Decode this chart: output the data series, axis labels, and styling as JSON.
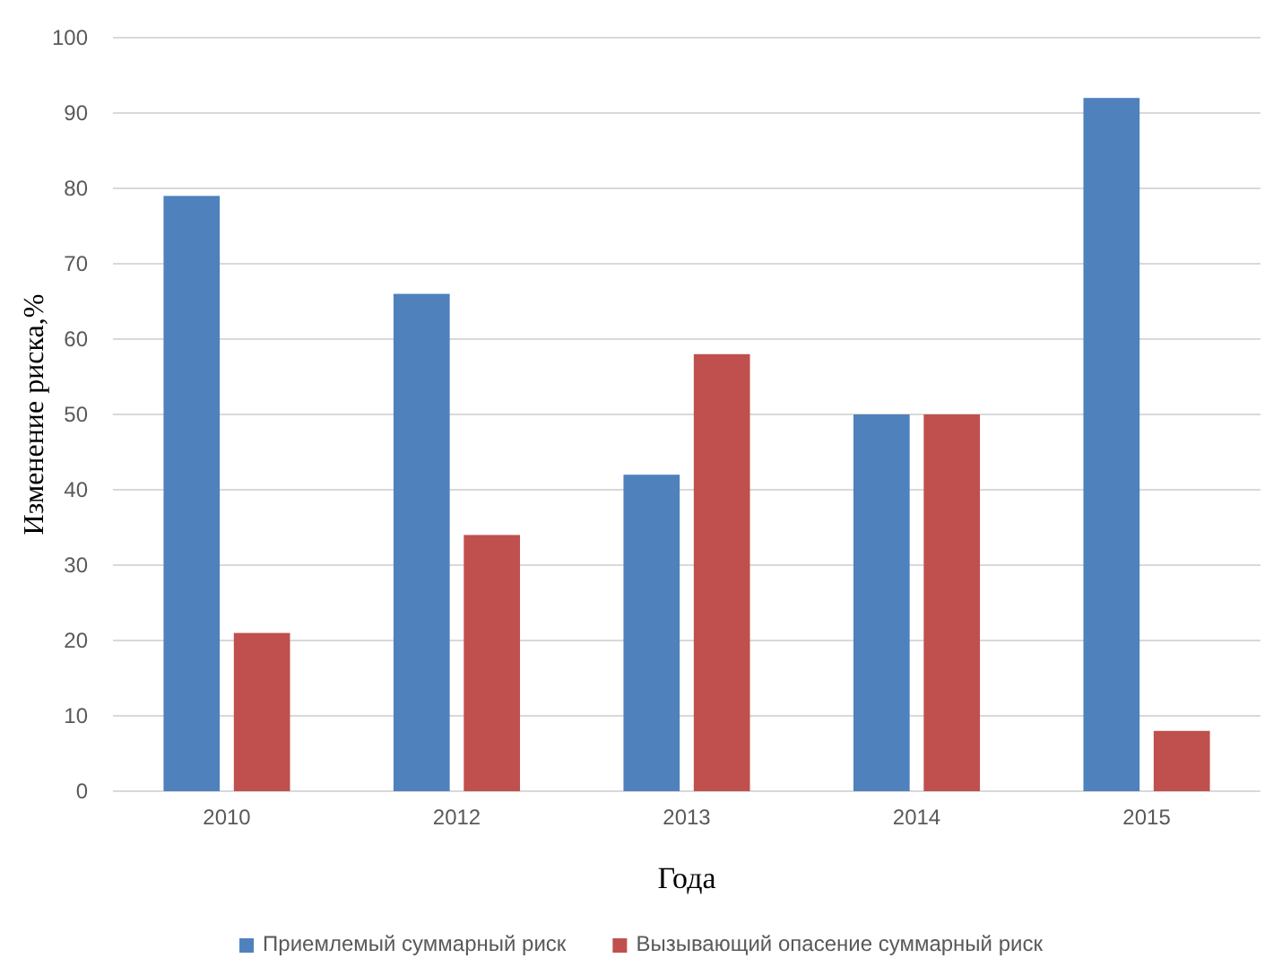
{
  "chart_data": {
    "type": "bar",
    "xlabel": "Года",
    "ylabel": "Изменение риска,%",
    "categories": [
      "2010",
      "2012",
      "2013",
      "2014",
      "2015"
    ],
    "series": [
      {
        "name": "Приемлемый суммарный риск",
        "color": "#4f81bd",
        "values": [
          79,
          66,
          42,
          50,
          92
        ]
      },
      {
        "name": "Вызывающий опасение суммарный риск",
        "color": "#c0504d",
        "values": [
          21,
          34,
          58,
          50,
          8
        ]
      }
    ],
    "ylim": [
      0,
      100
    ],
    "yticks": [
      0,
      10,
      20,
      30,
      40,
      50,
      60,
      70,
      80,
      90,
      100
    ],
    "grid": "y",
    "legend": "bottom"
  }
}
